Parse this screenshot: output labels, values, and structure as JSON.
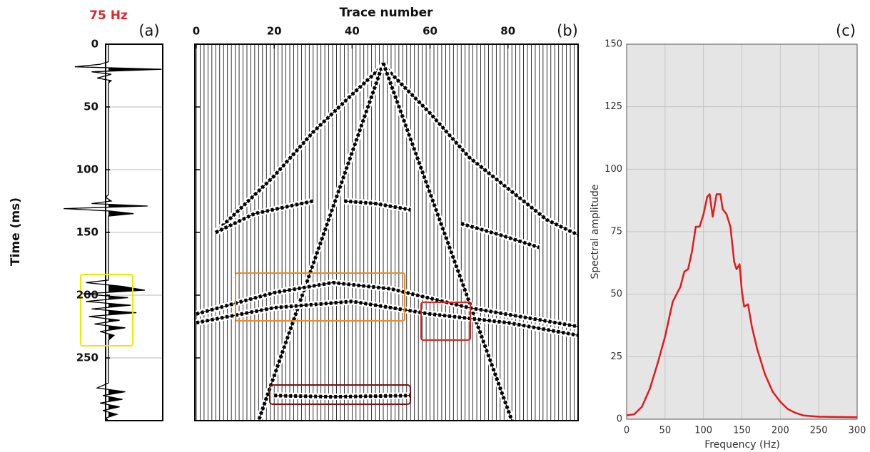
{
  "chart_data": [
    {
      "type": "wiggle",
      "title": "75 Hz",
      "panel_label": "(a)",
      "y_label": "Time (ms)",
      "ylim": [
        0,
        300
      ],
      "yticks": [
        0,
        50,
        100,
        150,
        200,
        250
      ],
      "xlim": [
        -0.05,
        0.97
      ],
      "grid": true,
      "color": "#000000",
      "x": [
        0,
        14,
        16,
        18,
        20,
        22,
        24,
        27,
        29,
        31,
        120,
        122,
        125,
        127,
        129,
        131,
        133,
        135,
        137,
        140,
        188,
        190,
        193,
        196,
        199,
        202,
        205,
        208,
        211,
        214,
        217,
        220,
        223,
        226,
        229,
        232,
        236,
        270,
        274,
        277,
        280,
        283,
        286,
        289,
        292,
        295,
        298,
        300
      ],
      "values": [
        0,
        0,
        -0.15,
        -0.6,
        0.95,
        -0.3,
        0.05,
        -0.2,
        0.05,
        0,
        0,
        -0.05,
        0.05,
        -0.3,
        0.7,
        -0.8,
        0.05,
        0.45,
        0,
        0,
        0,
        -0.4,
        0.25,
        0.65,
        -0.45,
        0.35,
        -0.4,
        0.4,
        -0.3,
        0.5,
        -0.35,
        0.2,
        -0.25,
        0.3,
        -0.15,
        0.1,
        0,
        0,
        -0.2,
        0.3,
        -0.1,
        0.25,
        -0.15,
        0.2,
        -0.1,
        0.15,
        -0.05,
        0
      ]
    },
    {
      "type": "section",
      "panel_label": "(b)",
      "x_label": "Trace number",
      "xlim": [
        0,
        98
      ],
      "xticks": [
        0,
        20,
        40,
        60,
        80
      ],
      "ylim": [
        0,
        300
      ],
      "yticks": [
        0,
        50,
        100,
        150,
        200,
        250
      ],
      "color": "#000000",
      "events": [
        {
          "trace": [
            48,
            40,
            30,
            20,
            10,
            5
          ],
          "time": [
            17,
            40,
            70,
            105,
            135,
            150
          ]
        },
        {
          "trace": [
            48,
            60,
            70,
            80,
            90,
            98
          ],
          "time": [
            17,
            55,
            90,
            115,
            140,
            152
          ]
        },
        {
          "trace": [
            48,
            16
          ],
          "time": [
            15,
            300
          ]
        },
        {
          "trace": [
            48,
            81
          ],
          "time": [
            15,
            300
          ]
        },
        {
          "trace": [
            5,
            15,
            30
          ],
          "time": [
            150,
            135,
            125
          ]
        },
        {
          "trace": [
            38,
            46,
            55
          ],
          "time": [
            125,
            127,
            132
          ]
        },
        {
          "trace": [
            68,
            78,
            88
          ],
          "time": [
            143,
            152,
            162
          ]
        },
        {
          "trace": [
            0,
            20,
            35,
            50,
            70,
            98
          ],
          "time": [
            215,
            198,
            190,
            195,
            210,
            225
          ]
        },
        {
          "trace": [
            0,
            20,
            40,
            60,
            80,
            98
          ],
          "time": [
            222,
            210,
            205,
            215,
            222,
            232
          ]
        },
        {
          "trace": [
            20,
            35,
            55
          ],
          "time": [
            280,
            281,
            280
          ]
        }
      ]
    },
    {
      "type": "line",
      "panel_label": "(c)",
      "x_label": "Frequency (Hz)",
      "y_label": "Spectral amplitude",
      "xlim": [
        0,
        300
      ],
      "ylim": [
        0,
        150
      ],
      "xticks": [
        0,
        50,
        100,
        150,
        200,
        250,
        300
      ],
      "yticks": [
        0,
        25,
        50,
        75,
        100,
        125,
        150
      ],
      "grid": true,
      "color": "#e31a1c",
      "x": [
        0,
        10,
        20,
        30,
        40,
        50,
        60,
        70,
        75,
        80,
        85,
        90,
        95,
        100,
        105,
        108,
        112,
        117,
        122,
        125,
        130,
        135,
        140,
        143,
        147,
        150,
        153,
        158,
        163,
        170,
        180,
        190,
        200,
        210,
        220,
        230,
        250,
        300
      ],
      "values": [
        1.5,
        2,
        5,
        12,
        22,
        33,
        47,
        53,
        59,
        60,
        67,
        77,
        77,
        82,
        89,
        90,
        81,
        90,
        90,
        84,
        82,
        77,
        63,
        60,
        62,
        51,
        45,
        46,
        37,
        28,
        18,
        11,
        7,
        4,
        2.5,
        1.5,
        1,
        0.8
      ]
    }
  ]
}
